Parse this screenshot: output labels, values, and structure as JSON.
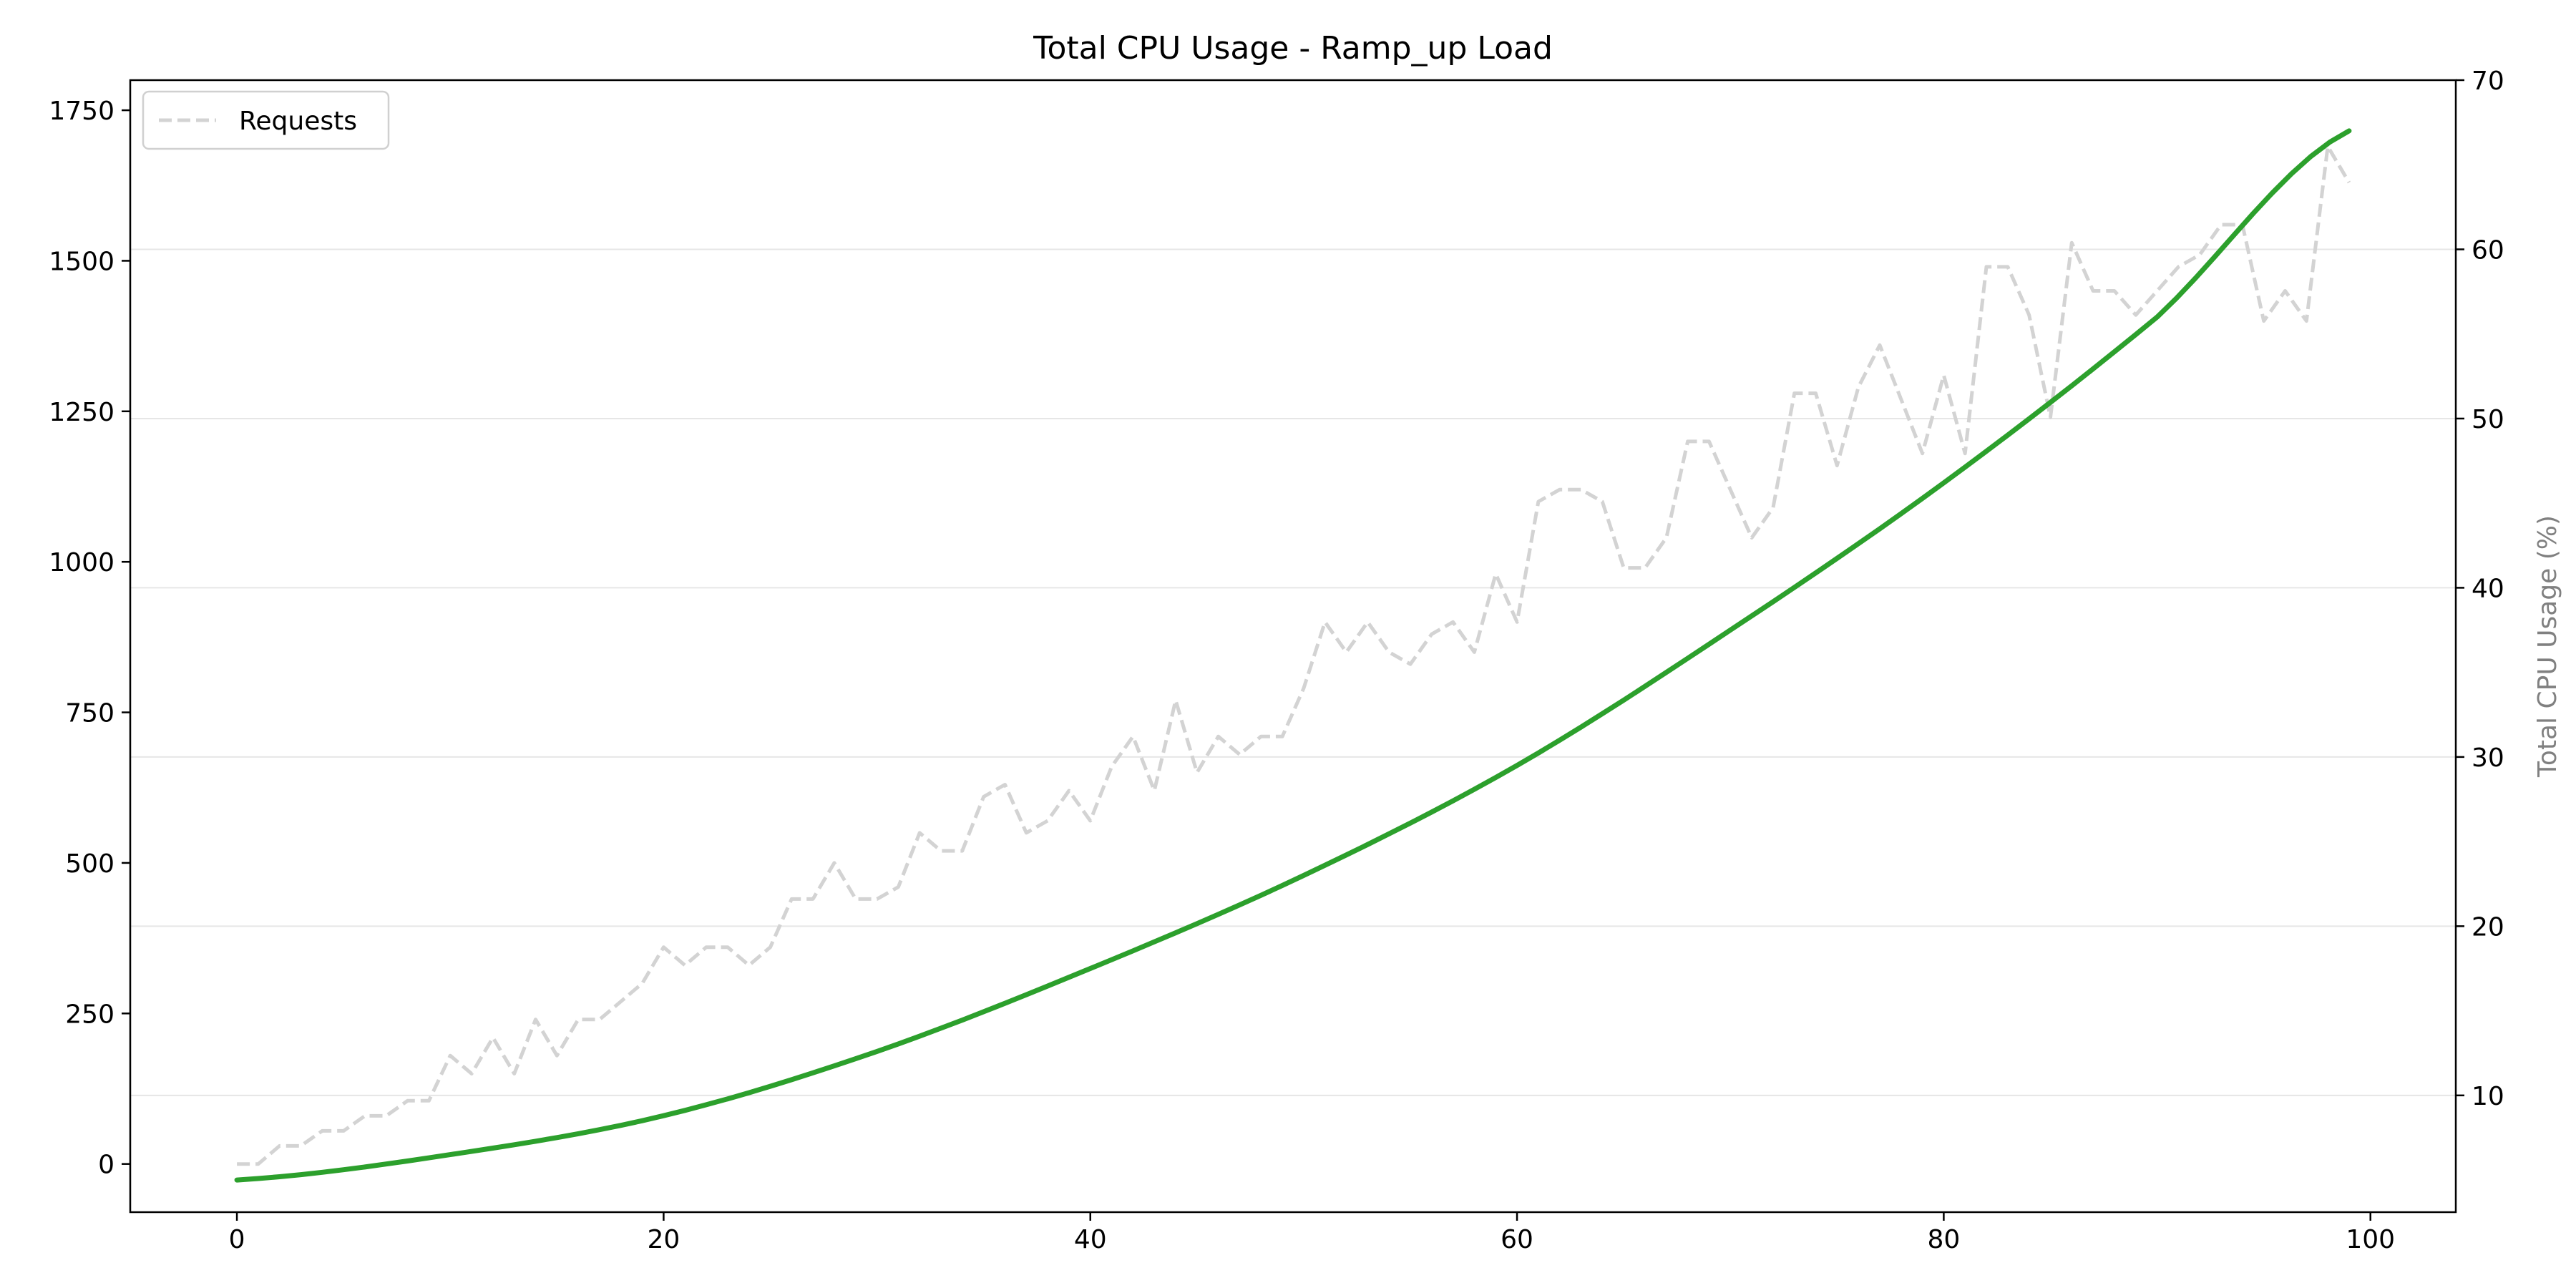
{
  "chart_data": {
    "type": "line",
    "title": "Total CPU Usage - Ramp_up Load",
    "xlabel": "",
    "ylabel_left": "",
    "ylabel_right": "Total CPU Usage (%)",
    "xlim": [
      -5,
      104
    ],
    "ylim_left": [
      -80,
      1800
    ],
    "ylim_right": [
      3.1,
      70
    ],
    "x_ticks": [
      "0",
      "20",
      "40",
      "60",
      "80",
      "100"
    ],
    "y_left_ticks": [
      "0",
      "250",
      "500",
      "750",
      "1000",
      "1250",
      "1500",
      "1750"
    ],
    "y_right_ticks": [
      "10",
      "20",
      "30",
      "40",
      "50",
      "60",
      "70"
    ],
    "grid": "horizontal (right axis)",
    "legend": {
      "placement": "top-left",
      "entries": [
        "Requests"
      ]
    },
    "colors": {
      "requests": "#d3d3d3",
      "cpu": "#2ca02c",
      "grid": "#e6e6e6"
    },
    "series": [
      {
        "name": "Requests",
        "axis": "left",
        "style": "dashed",
        "x": [
          0,
          1,
          2,
          3,
          4,
          5,
          6,
          7,
          8,
          9,
          10,
          11,
          12,
          13,
          14,
          15,
          16,
          17,
          18,
          19,
          20,
          21,
          22,
          23,
          24,
          25,
          26,
          27,
          28,
          29,
          30,
          31,
          32,
          33,
          34,
          35,
          36,
          37,
          38,
          39,
          40,
          41,
          42,
          43,
          44,
          45,
          46,
          47,
          48,
          49,
          50,
          51,
          52,
          53,
          54,
          55,
          56,
          57,
          58,
          59,
          60,
          61,
          62,
          63,
          64,
          65,
          66,
          67,
          68,
          69,
          70,
          71,
          72,
          73,
          74,
          75,
          76,
          77,
          78,
          79,
          80,
          81,
          82,
          83,
          84,
          85,
          86,
          87,
          88,
          89,
          90,
          91,
          92,
          93,
          94,
          95,
          96,
          97,
          98,
          99
        ],
        "values": [
          0,
          0,
          30,
          30,
          55,
          55,
          80,
          80,
          105,
          105,
          180,
          150,
          210,
          150,
          240,
          180,
          240,
          240,
          270,
          300,
          360,
          330,
          360,
          360,
          330,
          360,
          440,
          440,
          500,
          440,
          440,
          460,
          550,
          520,
          520,
          610,
          630,
          550,
          570,
          620,
          570,
          660,
          710,
          620,
          770,
          650,
          710,
          680,
          710,
          710,
          790,
          900,
          850,
          900,
          850,
          830,
          880,
          900,
          850,
          980,
          900,
          1100,
          1120,
          1120,
          1100,
          990,
          990,
          1040,
          1200,
          1200,
          1120,
          1040,
          1090,
          1280,
          1280,
          1160,
          1290,
          1360,
          1270,
          1180,
          1310,
          1180,
          1490,
          1490,
          1410,
          1240,
          1530,
          1450,
          1450,
          1410,
          1450,
          1490,
          1510,
          1560,
          1560,
          1400,
          1450,
          1400,
          1690,
          1630
        ]
      },
      {
        "name": "",
        "axis": "right",
        "style": "solid",
        "x": [
          0,
          10,
          20,
          30,
          40,
          50,
          60,
          70,
          80,
          90,
          99
        ],
        "values": [
          5.0,
          6.5,
          8.8,
          12.6,
          17.5,
          23.0,
          29.5,
          37.5,
          46.2,
          56.0,
          67.0
        ]
      }
    ]
  }
}
